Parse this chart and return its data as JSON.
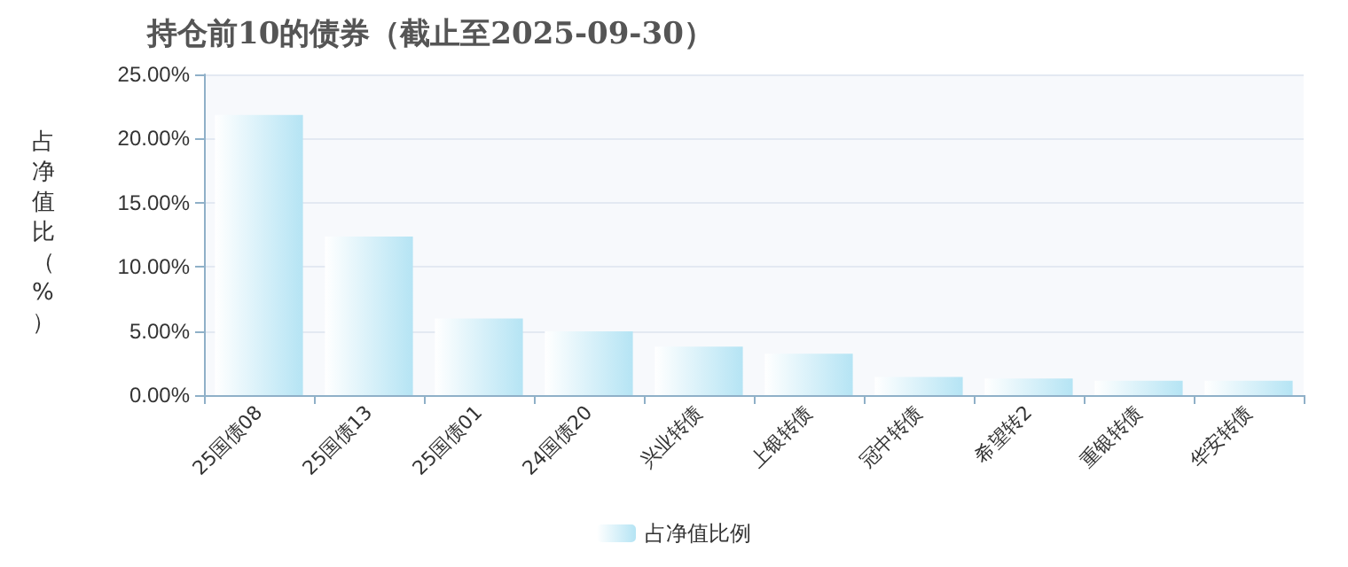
{
  "chart_data": {
    "type": "bar",
    "title": "持仓前10的债券（截止至2025-09-30）",
    "ylabel": "占净值比（%）",
    "categories": [
      "25国债08",
      "25国债13",
      "25国债01",
      "24国债20",
      "兴业转债",
      "上银转债",
      "冠中转债",
      "希望转2",
      "重银转债",
      "华安转债"
    ],
    "series": [
      {
        "name": "占净值比例",
        "color": "#b5e4f4",
        "values": [
          21.84,
          12.36,
          5.98,
          4.97,
          3.78,
          3.22,
          1.41,
          1.3,
          1.13,
          1.13
        ]
      }
    ],
    "ylim": [
      0,
      25
    ],
    "yticks": [
      {
        "value": 0,
        "label": "0.00%"
      },
      {
        "value": 5,
        "label": "5.00%"
      },
      {
        "value": 10,
        "label": "10.00%"
      },
      {
        "value": 15,
        "label": "15.00%"
      },
      {
        "value": 20,
        "label": "20.00%"
      },
      {
        "value": 25,
        "label": "25.00%"
      }
    ],
    "grid": "y",
    "legend": "bottom"
  }
}
